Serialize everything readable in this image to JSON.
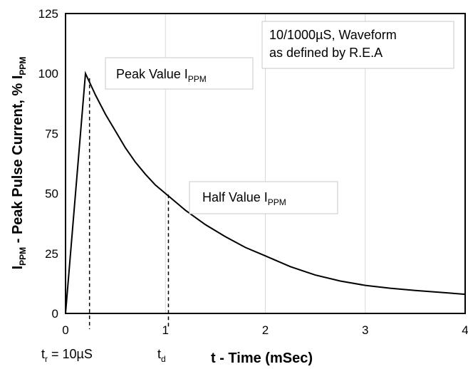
{
  "chart_data": {
    "type": "line",
    "title": "",
    "xlabel": "t - Time (mSec)",
    "ylabel_main": "I",
    "ylabel_sub": "PPM",
    "ylabel_rest": " - Peak Pulse Current, % I",
    "ylabel_sub2": "PPM",
    "xlim": [
      0,
      4
    ],
    "ylim": [
      0,
      125
    ],
    "x_ticks": [
      0,
      1,
      2,
      3,
      4
    ],
    "x_tick_labels": [
      "0",
      "1",
      "2",
      "3",
      "4"
    ],
    "y_ticks": [
      0,
      25,
      50,
      75,
      100,
      125
    ],
    "y_tick_labels": [
      "0",
      "25",
      "50",
      "75",
      "100",
      "125"
    ],
    "grid": "vertical",
    "series": [
      {
        "x": [
          0,
          0.2,
          0.3,
          0.4,
          0.5,
          0.6,
          0.7,
          0.8,
          0.9,
          1.0,
          1.2,
          1.4,
          1.6,
          1.8,
          2.0,
          2.25,
          2.5,
          2.75,
          3.0,
          3.25,
          3.5,
          3.75,
          4.0
        ],
        "y": [
          0,
          100,
          91,
          83,
          76,
          69,
          63,
          58,
          53.5,
          50,
          43,
          37,
          32,
          27.5,
          24,
          19.5,
          16,
          13.5,
          11.7,
          10.5,
          9.6,
          8.8,
          8.0
        ]
      }
    ],
    "reference_lines": [
      {
        "x": 0.24,
        "y_from": 0,
        "y_to": 98
      },
      {
        "x": 1.03,
        "y_from": 0,
        "y_to": 49.5
      }
    ],
    "annotations": {
      "waveform_line1": "10/1000µS, Waveform",
      "waveform_line2": "as defined by R.E.A",
      "peak_main": "Peak Value I",
      "peak_sub": "PPM",
      "half_main": "Half Value I",
      "half_sub": "PPM",
      "tr_main": "t",
      "tr_sub": "r",
      "tr_rest": " = 10µS",
      "td_main": "t",
      "td_sub": "d"
    }
  }
}
